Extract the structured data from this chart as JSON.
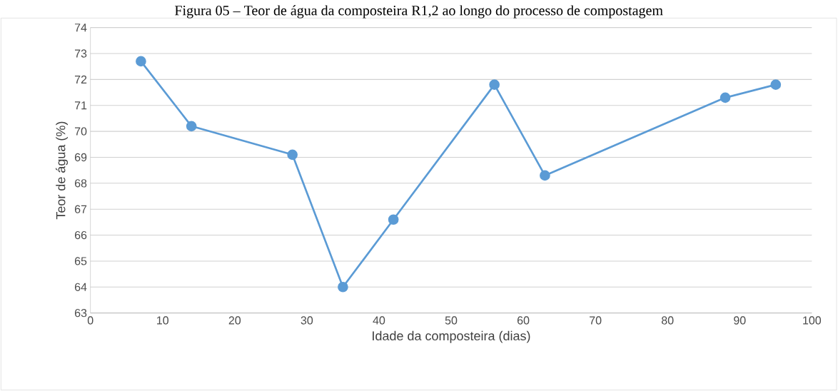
{
  "chart_data": {
    "type": "line",
    "title": "Figura 05 – Teor de água da composteira R1,2 ao longo do processo de compostagem",
    "xlabel": "Idade da composteira (dias)",
    "ylabel": "Teor de água (%)",
    "x": [
      7,
      14,
      28,
      35,
      42,
      56,
      63,
      88,
      95
    ],
    "series": [
      {
        "color": "#5b9bd5",
        "values": [
          72.7,
          70.2,
          69.1,
          64.0,
          66.6,
          71.8,
          68.3,
          71.3,
          71.8
        ]
      }
    ],
    "xlim": [
      0,
      100
    ],
    "xticks": [
      0,
      10,
      20,
      30,
      40,
      50,
      60,
      70,
      80,
      90,
      100
    ],
    "ylim": [
      63,
      74
    ],
    "yticks": [
      63,
      64,
      65,
      66,
      67,
      68,
      69,
      70,
      71,
      72,
      73,
      74
    ],
    "grid": "y",
    "marker": "circle",
    "line_style": "solid"
  }
}
